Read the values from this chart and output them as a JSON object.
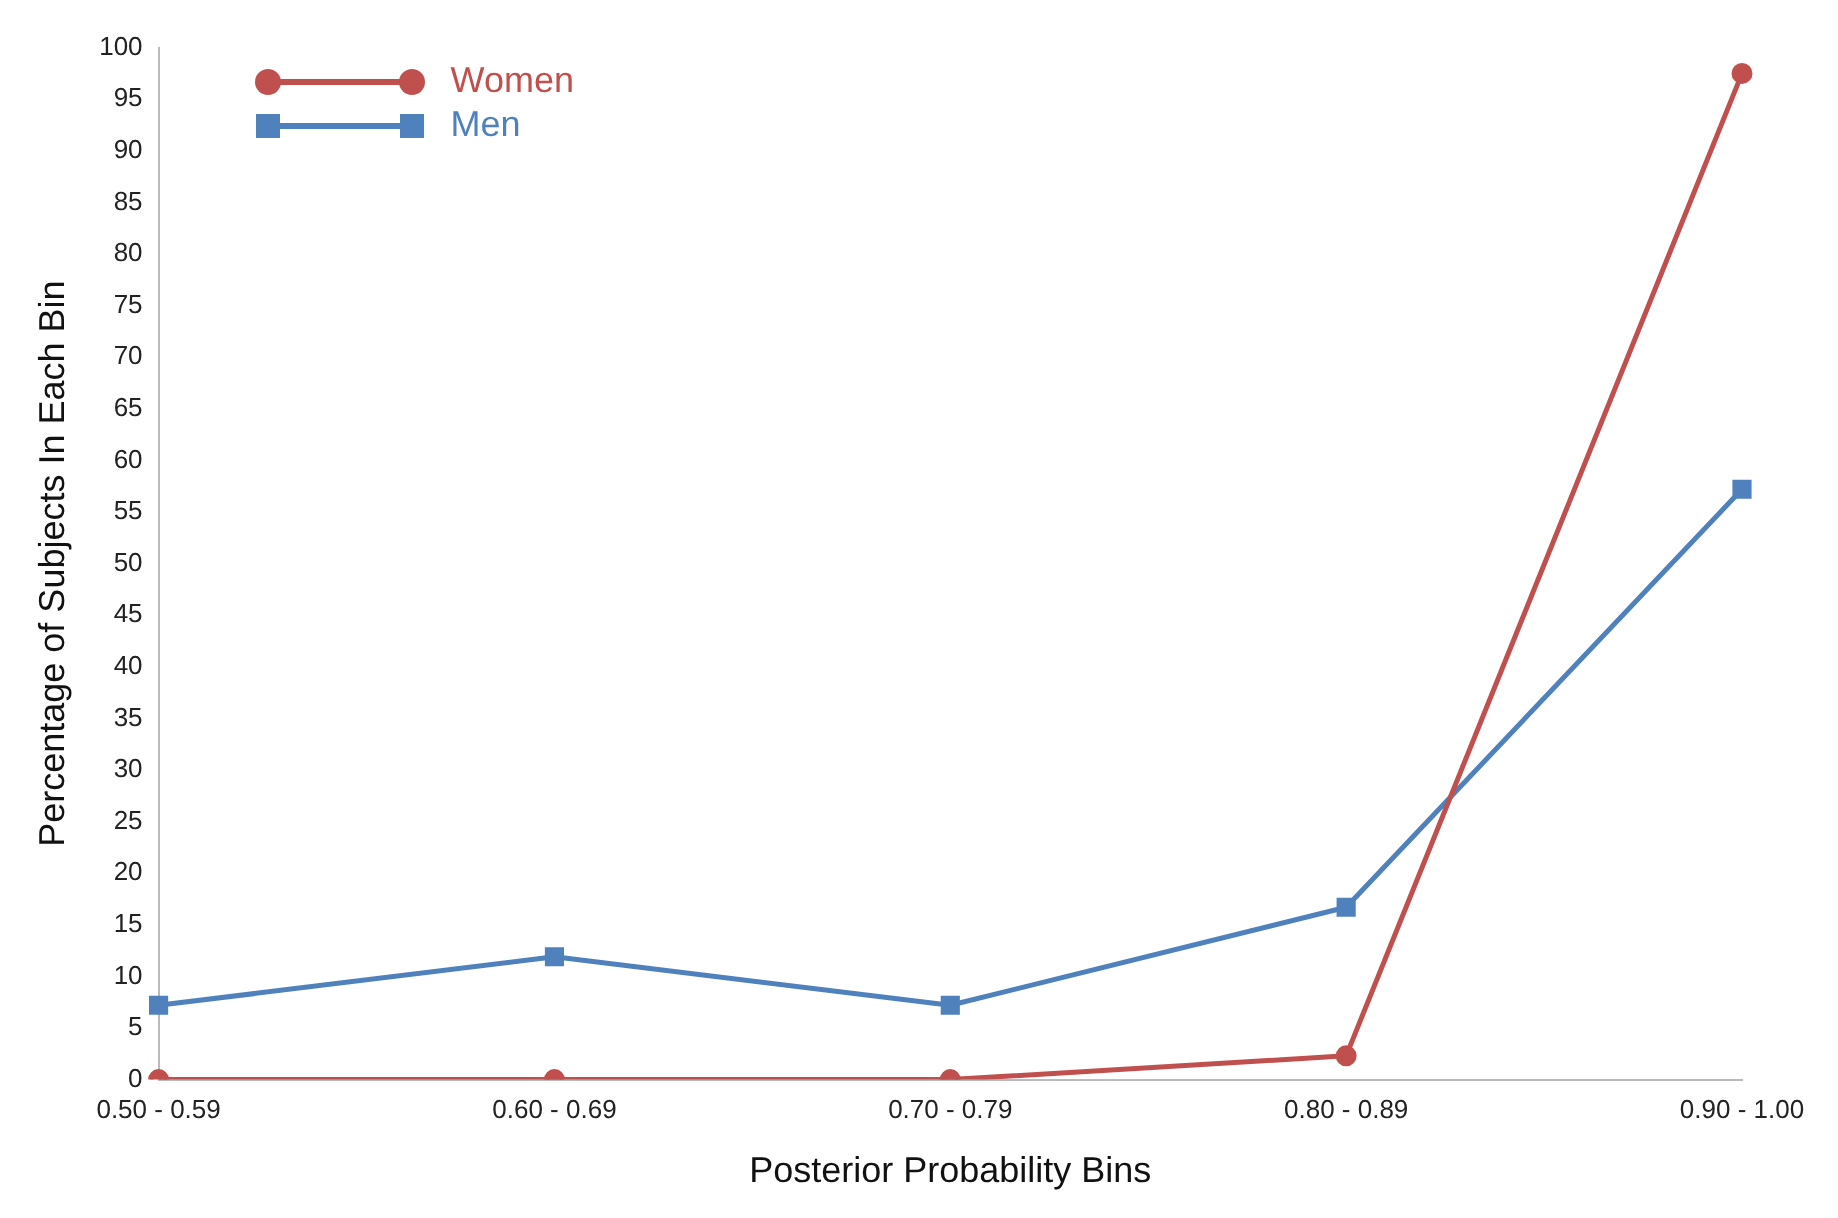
{
  "chart_data": {
    "type": "line",
    "xlabel": "Posterior Probability Bins",
    "ylabel": "Percentage of Subjects In Each Bin",
    "categories": [
      "0.50 - 0.59",
      "0.60 - 0.69",
      "0.70 - 0.79",
      "0.80 - 0.89",
      "0.90 - 1.00"
    ],
    "series": [
      {
        "name": "Women",
        "color": "#c0504d",
        "marker": "circle",
        "values": [
          0,
          0,
          0,
          2.3,
          97.5
        ]
      },
      {
        "name": "Men",
        "color": "#4f81bd",
        "marker": "square",
        "values": [
          7.2,
          11.9,
          7.2,
          16.7,
          57.2
        ]
      }
    ],
    "ylim": [
      0,
      100
    ],
    "yticks": [
      0,
      5,
      10,
      15,
      20,
      25,
      30,
      35,
      40,
      45,
      50,
      55,
      60,
      65,
      70,
      75,
      80,
      85,
      90,
      95,
      100
    ],
    "grid": false,
    "legend": "top left",
    "line_style": "solid"
  }
}
